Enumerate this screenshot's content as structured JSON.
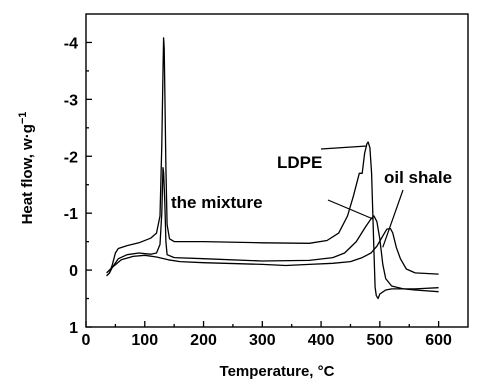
{
  "chart_data": {
    "type": "line",
    "title": "",
    "xlabel": "Temperature, °C",
    "ylabel": "Heat flow, w·g",
    "ylabel_superscript": "−1",
    "xlim": [
      0,
      650
    ],
    "ylim": [
      1,
      -4.5
    ],
    "y_axis_inverted": true,
    "grid": false,
    "x_ticks": [
      {
        "value": 0,
        "label": "0"
      },
      {
        "value": 100,
        "label": "100"
      },
      {
        "value": 200,
        "label": "200"
      },
      {
        "value": 300,
        "label": "300"
      },
      {
        "value": 400,
        "label": "400"
      },
      {
        "value": 500,
        "label": "500"
      },
      {
        "value": 600,
        "label": "600"
      }
    ],
    "y_ticks": [
      {
        "value": -4,
        "label": "-4"
      },
      {
        "value": -3,
        "label": "-3"
      },
      {
        "value": -2,
        "label": "-2"
      },
      {
        "value": -1,
        "label": "-1"
      },
      {
        "value": 0,
        "label": "0"
      },
      {
        "value": 1,
        "label": "1"
      }
    ],
    "series": [
      {
        "name": "LDPE",
        "points": [
          [
            35,
            0.1
          ],
          [
            40,
            0.05
          ],
          [
            45,
            -0.1
          ],
          [
            50,
            -0.3
          ],
          [
            55,
            -0.38
          ],
          [
            70,
            -0.43
          ],
          [
            90,
            -0.48
          ],
          [
            110,
            -0.56
          ],
          [
            120,
            -0.65
          ],
          [
            126,
            -0.95
          ],
          [
            129,
            -2.2
          ],
          [
            131,
            -3.5
          ],
          [
            132,
            -4.08
          ],
          [
            133,
            -3.9
          ],
          [
            134,
            -3.2
          ],
          [
            136,
            -1.8
          ],
          [
            138,
            -0.8
          ],
          [
            142,
            -0.55
          ],
          [
            150,
            -0.5
          ],
          [
            200,
            -0.5
          ],
          [
            300,
            -0.48
          ],
          [
            380,
            -0.47
          ],
          [
            410,
            -0.52
          ],
          [
            430,
            -0.65
          ],
          [
            445,
            -0.95
          ],
          [
            455,
            -1.3
          ],
          [
            465,
            -1.7
          ],
          [
            470,
            -1.7
          ],
          [
            474,
            -2.05
          ],
          [
            478,
            -2.22
          ],
          [
            480,
            -2.25
          ],
          [
            483,
            -2.15
          ],
          [
            486,
            -1.7
          ],
          [
            488,
            -1.0
          ],
          [
            490,
            -0.3
          ],
          [
            492,
            0.3
          ],
          [
            494,
            0.45
          ],
          [
            497,
            0.5
          ],
          [
            500,
            0.42
          ],
          [
            510,
            0.35
          ],
          [
            520,
            0.33
          ],
          [
            560,
            0.33
          ],
          [
            600,
            0.31
          ]
        ]
      },
      {
        "name": "the mixture",
        "points": [
          [
            35,
            0.1
          ],
          [
            40,
            0.05
          ],
          [
            45,
            -0.05
          ],
          [
            55,
            -0.2
          ],
          [
            70,
            -0.27
          ],
          [
            90,
            -0.3
          ],
          [
            110,
            -0.28
          ],
          [
            120,
            -0.3
          ],
          [
            126,
            -0.45
          ],
          [
            129,
            -1.0
          ],
          [
            131,
            -1.8
          ],
          [
            132,
            -1.72
          ],
          [
            134,
            -1.2
          ],
          [
            136,
            -0.5
          ],
          [
            138,
            -0.27
          ],
          [
            150,
            -0.22
          ],
          [
            200,
            -0.2
          ],
          [
            300,
            -0.16
          ],
          [
            380,
            -0.17
          ],
          [
            420,
            -0.22
          ],
          [
            440,
            -0.3
          ],
          [
            460,
            -0.5
          ],
          [
            475,
            -0.75
          ],
          [
            485,
            -0.9
          ],
          [
            490,
            -0.95
          ],
          [
            495,
            -0.85
          ],
          [
            500,
            -0.55
          ],
          [
            505,
            -0.1
          ],
          [
            510,
            0.15
          ],
          [
            520,
            0.28
          ],
          [
            540,
            0.33
          ],
          [
            560,
            0.35
          ],
          [
            600,
            0.38
          ]
        ]
      },
      {
        "name": "oil shale",
        "points": [
          [
            35,
            0.05
          ],
          [
            45,
            -0.05
          ],
          [
            60,
            -0.18
          ],
          [
            80,
            -0.24
          ],
          [
            100,
            -0.26
          ],
          [
            120,
            -0.23
          ],
          [
            140,
            -0.18
          ],
          [
            160,
            -0.15
          ],
          [
            200,
            -0.13
          ],
          [
            300,
            -0.1
          ],
          [
            340,
            -0.08
          ],
          [
            380,
            -0.1
          ],
          [
            420,
            -0.12
          ],
          [
            450,
            -0.15
          ],
          [
            470,
            -0.22
          ],
          [
            485,
            -0.3
          ],
          [
            495,
            -0.42
          ],
          [
            505,
            -0.6
          ],
          [
            512,
            -0.72
          ],
          [
            518,
            -0.73
          ],
          [
            522,
            -0.65
          ],
          [
            528,
            -0.4
          ],
          [
            535,
            -0.2
          ],
          [
            545,
            -0.02
          ],
          [
            560,
            0.05
          ],
          [
            600,
            0.07
          ]
        ]
      }
    ],
    "annotations": [
      {
        "text": "LDPE",
        "target_series": "LDPE"
      },
      {
        "text": "the mixture",
        "target_series": "the mixture"
      },
      {
        "text": "oil shale",
        "target_series": "oil shale"
      }
    ]
  }
}
